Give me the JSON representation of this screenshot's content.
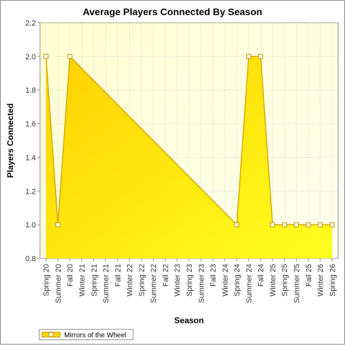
{
  "chart_data": {
    "type": "area",
    "title": "Average Players Connected By Season",
    "x_label": "Season",
    "y_label": "Players Connected",
    "categories": [
      "Spring 20",
      "Summer 20",
      "Fall 20",
      "Winter 21",
      "Spring 21",
      "Summer 21",
      "Fall 21",
      "Winter 22",
      "Spring 22",
      "Summer 22",
      "Fall 22",
      "Winter 23",
      "Spring 23",
      "Summer 23",
      "Fall 23",
      "Winter 24",
      "Spring 24",
      "Summer 24",
      "Fall 24",
      "Winter 25",
      "Spring 25",
      "Summer 25",
      "Fall 25",
      "Winter 26",
      "Spring 26"
    ],
    "series": [
      {
        "name": "Mirrors of the Wheel",
        "color": "#ffd700",
        "values": [
          2,
          1,
          2,
          null,
          null,
          null,
          null,
          null,
          null,
          null,
          null,
          null,
          null,
          null,
          null,
          null,
          1,
          2,
          2,
          1,
          1,
          1,
          1,
          1,
          1
        ]
      }
    ],
    "connect_nulls": true,
    "ylim": [
      0.8,
      2.2
    ],
    "yticks": [
      0.8,
      {
        "value": 1,
        "label": "1.0"
      },
      1.2,
      1.4,
      1.6,
      1.8,
      {
        "value": 2,
        "label": "2.0"
      },
      2.2
    ],
    "grid": true,
    "legend": "bottom-left"
  }
}
